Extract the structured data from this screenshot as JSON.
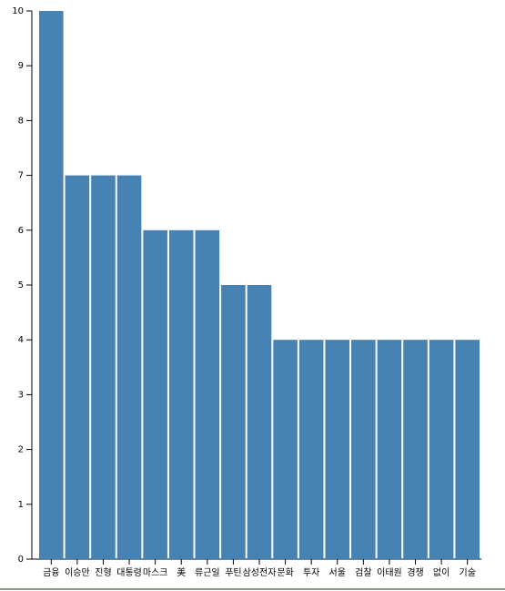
{
  "chart_data": {
    "type": "bar",
    "categories": [
      "금융",
      "이승만",
      "진형",
      "대통령",
      "마스크",
      "美",
      "류근일",
      "푸틴",
      "삼성전자",
      "문화",
      "투자",
      "서울",
      "검찰",
      "이태원",
      "경쟁",
      "없이",
      "기술"
    ],
    "values": [
      10,
      7,
      7,
      7,
      6,
      6,
      6,
      5,
      5,
      4,
      4,
      4,
      4,
      4,
      4,
      4,
      4
    ],
    "color": "#4682b4",
    "ylim": [
      0,
      10
    ],
    "yticks": [
      0,
      1,
      2,
      3,
      4,
      5,
      6,
      7,
      8,
      9,
      10
    ]
  }
}
